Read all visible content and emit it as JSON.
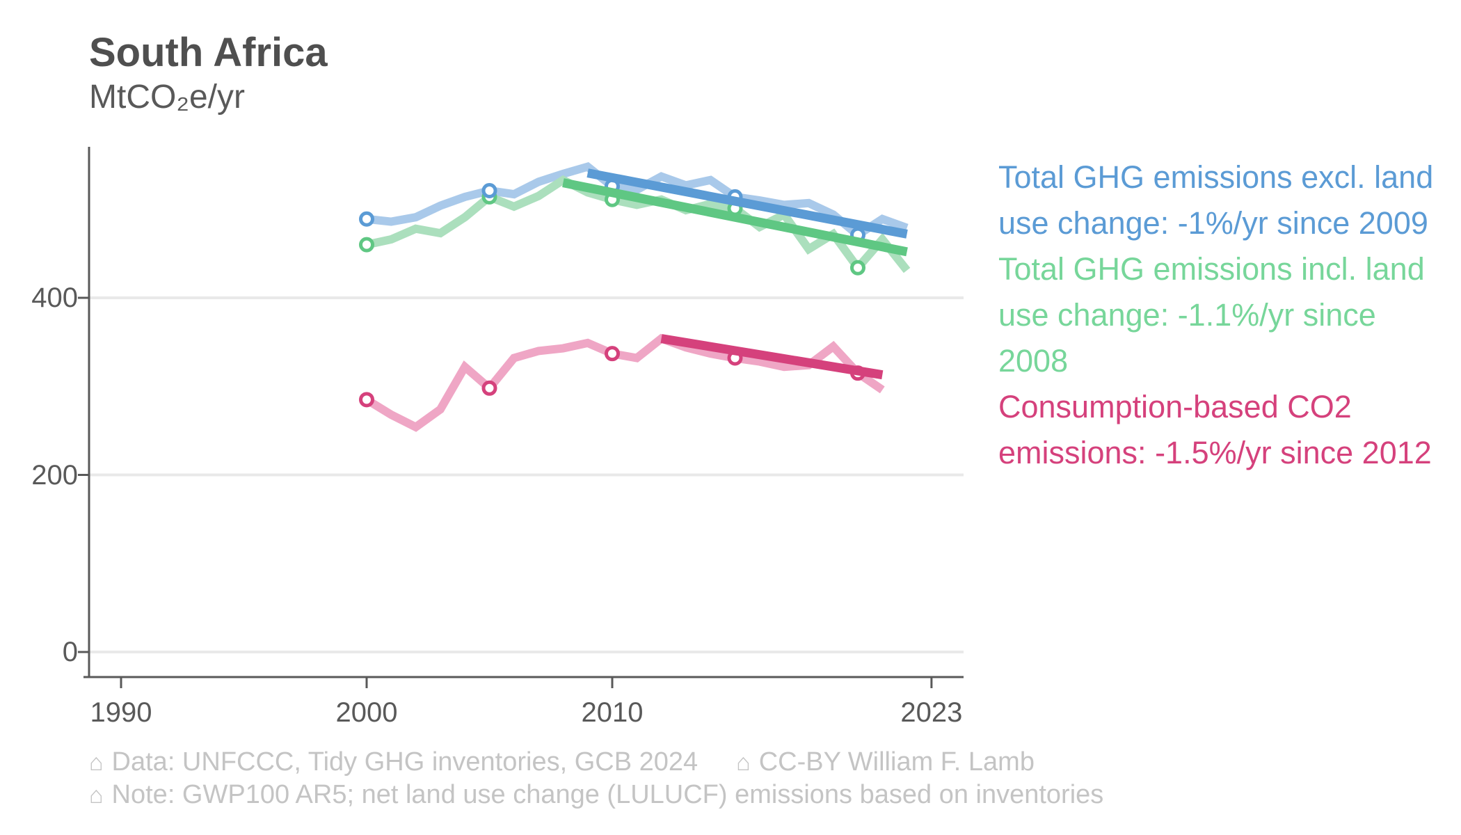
{
  "header": {
    "title": "South Africa",
    "unit": "MtCO₂e/yr"
  },
  "legend": {
    "items": [
      {
        "id": "ghg-excl-luc",
        "text": "Total GHG emissions excl. land use change: -1%/yr since 2009",
        "color": "#5B9BD5"
      },
      {
        "id": "ghg-incl-luc",
        "text": "Total GHG emissions incl. land use change: -1.1%/yr since 2008",
        "color": "#77D69A"
      },
      {
        "id": "consumption-co2",
        "text": "Consumption-based CO2 emissions: -1.5%/yr since 2012",
        "color": "#D5417C"
      }
    ]
  },
  "footer": {
    "icon": "⌂",
    "line1_left": "Data: UNFCCC, Tidy GHG inventories, GCB 2024",
    "line1_right": "CC-BY William F. Lamb",
    "line2": "Note: GWP100 AR5; net land use change (LULUCF) emissions based on inventories"
  },
  "chart_data": {
    "type": "line",
    "title": "South Africa",
    "ylabel": "MtCO₂e/yr",
    "xlabel": "",
    "x_ticks": [
      1990,
      2000,
      2010,
      2023
    ],
    "y_ticks": [
      0,
      200,
      400
    ],
    "xlim": [
      1988.5,
      2024.5
    ],
    "ylim": [
      0,
      576
    ],
    "grid": "horizontal",
    "legend_position": "right",
    "series": [
      {
        "id": "ghg-excl-luc",
        "name": "Total GHG emissions excl. land use change",
        "line_color": "#A9C9EA",
        "marker_color": "#5B9BD5",
        "marker_years": [
          2000,
          2005,
          2010,
          2015,
          2020
        ],
        "x": [
          2000,
          2001,
          2002,
          2003,
          2004,
          2005,
          2006,
          2007,
          2008,
          2009,
          2010,
          2011,
          2012,
          2013,
          2014,
          2015,
          2016,
          2017,
          2018,
          2019,
          2020,
          2021,
          2022
        ],
        "values": [
          489,
          486,
          491,
          504,
          514,
          521,
          517,
          531,
          540,
          548,
          526,
          522,
          537,
          527,
          533,
          514,
          510,
          505,
          507,
          494,
          471,
          489,
          479
        ]
      },
      {
        "id": "ghg-incl-luc",
        "name": "Total GHG emissions incl. land use change",
        "line_color": "#ABDFBD",
        "marker_color": "#5FC783",
        "marker_years": [
          2000,
          2005,
          2010,
          2015,
          2020
        ],
        "x": [
          2000,
          2001,
          2002,
          2003,
          2004,
          2005,
          2006,
          2007,
          2008,
          2009,
          2010,
          2011,
          2012,
          2013,
          2014,
          2015,
          2016,
          2017,
          2018,
          2019,
          2020,
          2021,
          2022
        ],
        "values": [
          460,
          466,
          478,
          473,
          491,
          514,
          503,
          515,
          533,
          519,
          511,
          505,
          511,
          499,
          506,
          501,
          480,
          494,
          455,
          472,
          434,
          466,
          431
        ]
      },
      {
        "id": "consumption-co2",
        "name": "Consumption-based CO2 emissions",
        "line_color": "#EFA6C5",
        "marker_color": "#D5417C",
        "marker_years": [
          2000,
          2005,
          2010,
          2015,
          2020
        ],
        "x": [
          2000,
          2001,
          2002,
          2003,
          2004,
          2005,
          2006,
          2007,
          2008,
          2009,
          2010,
          2011,
          2012,
          2013,
          2014,
          2015,
          2016,
          2017,
          2018,
          2019,
          2020,
          2021
        ],
        "values": [
          285,
          268,
          254,
          274,
          322,
          298,
          332,
          340,
          343,
          349,
          337,
          332,
          354,
          344,
          337,
          332,
          328,
          322,
          324,
          345,
          315,
          296
        ]
      }
    ],
    "trends": [
      {
        "id": "ghg-excl-luc",
        "label": "-1%/yr since 2009",
        "color": "#5B9BD5",
        "start_year": 2009,
        "start_value": 541,
        "end_year": 2022,
        "end_value": 472
      },
      {
        "id": "ghg-incl-luc",
        "label": "-1.1%/yr since 2008",
        "color": "#5FC783",
        "start_year": 2008,
        "start_value": 530,
        "end_year": 2022,
        "end_value": 452
      },
      {
        "id": "consumption-co2",
        "label": "-1.5%/yr since 2012",
        "color": "#D5417C",
        "start_year": 2012,
        "start_value": 354,
        "end_year": 2021,
        "end_value": 313
      }
    ]
  }
}
